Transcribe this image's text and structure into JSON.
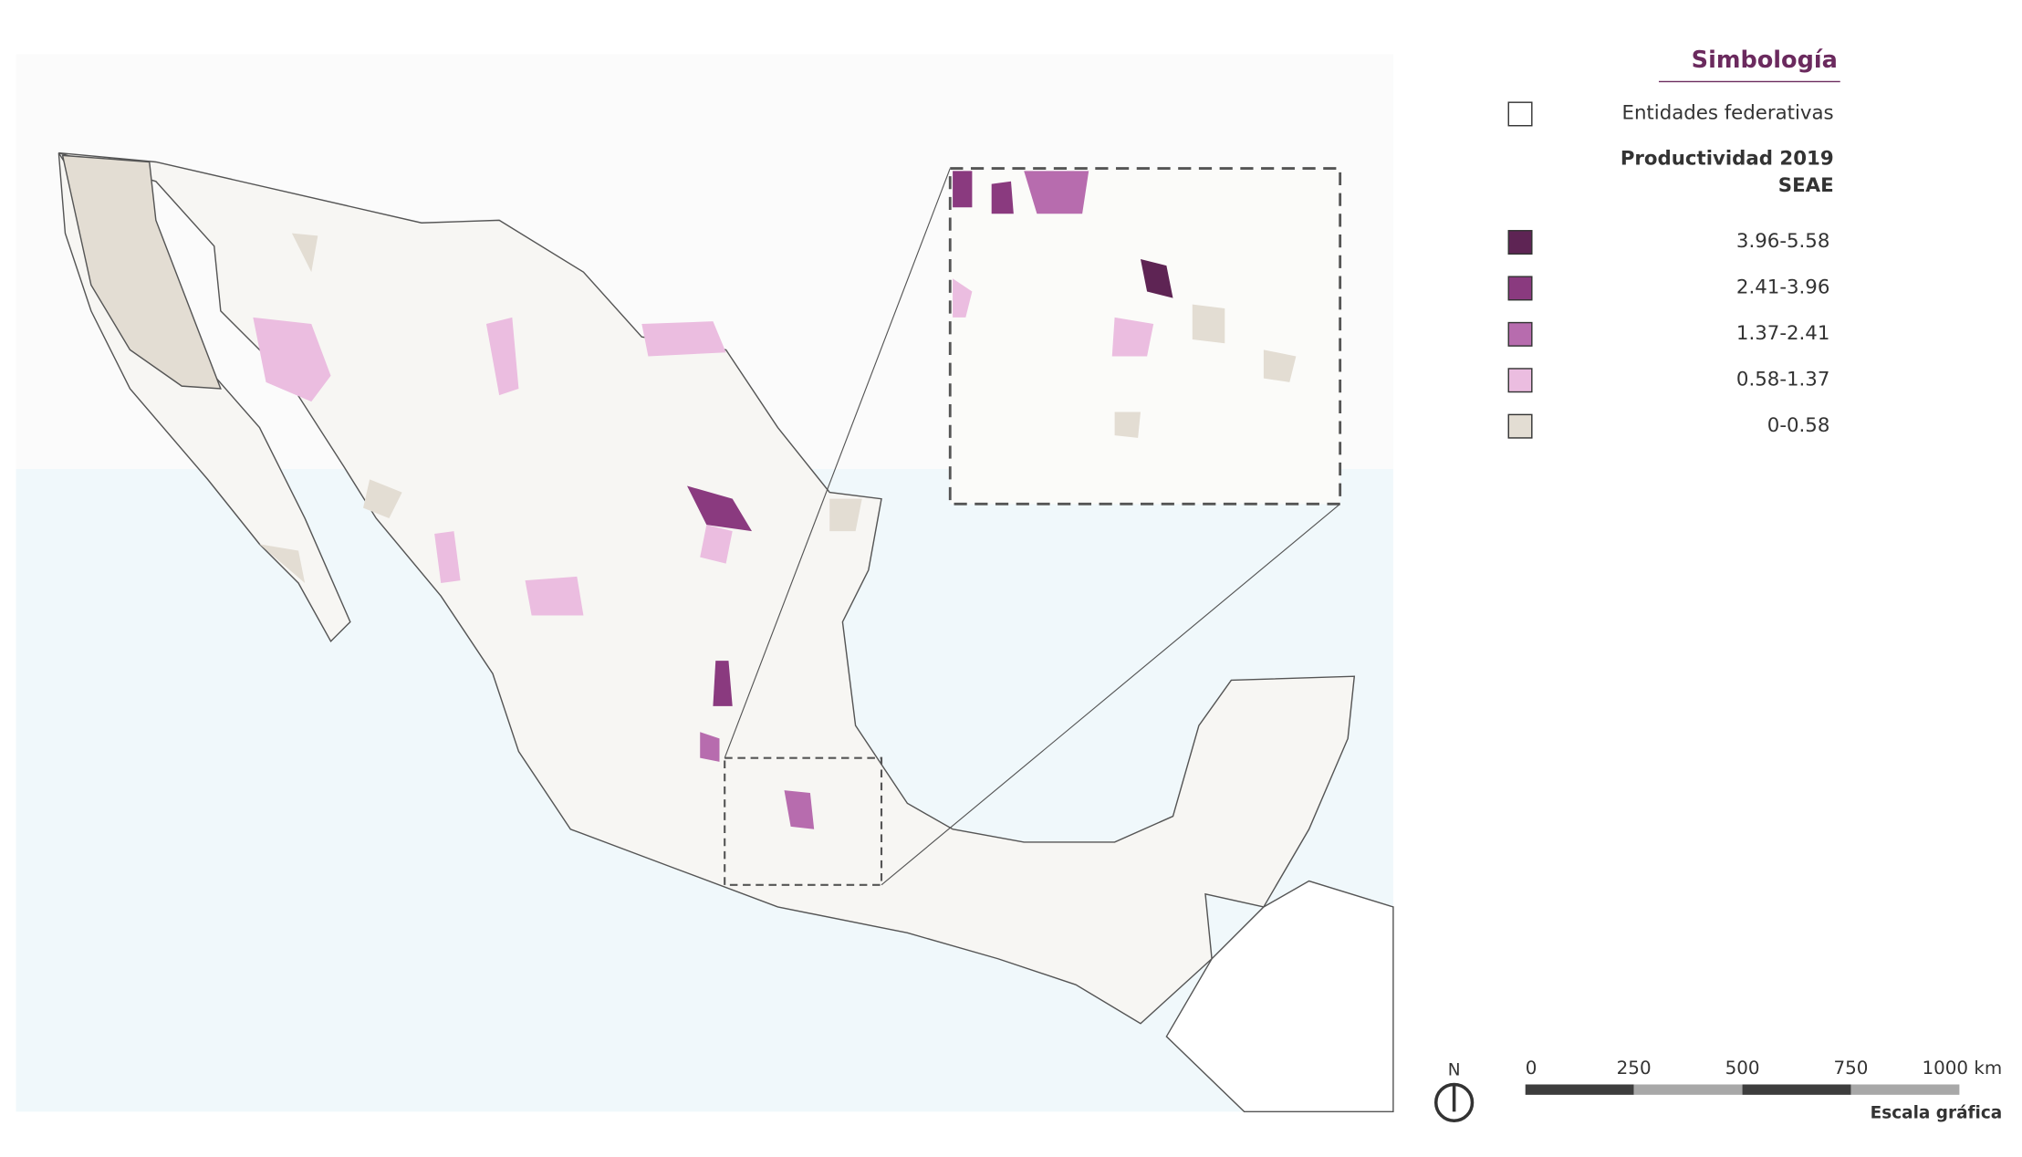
{
  "legend": {
    "title": "Simbología",
    "entities": {
      "label": "Entidades federativas",
      "color": "#ffffff"
    },
    "heading": [
      "Productividad 2019",
      "SEAE"
    ],
    "classes": [
      {
        "label": "3.96-5.58",
        "color": "#5e2454"
      },
      {
        "label": "2.41-3.96",
        "color": "#8a3a7f"
      },
      {
        "label": "1.37-2.41",
        "color": "#b76cae"
      },
      {
        "label": "0.58-1.37",
        "color": "#ebbde0"
      },
      {
        "label": "0-0.58",
        "color": "#e3ddd3"
      }
    ]
  },
  "north_label": "N",
  "scale_bar": {
    "ticks": [
      "0",
      "250",
      "500",
      "750",
      "1000 km"
    ],
    "caption": "Escala gráfica"
  }
}
